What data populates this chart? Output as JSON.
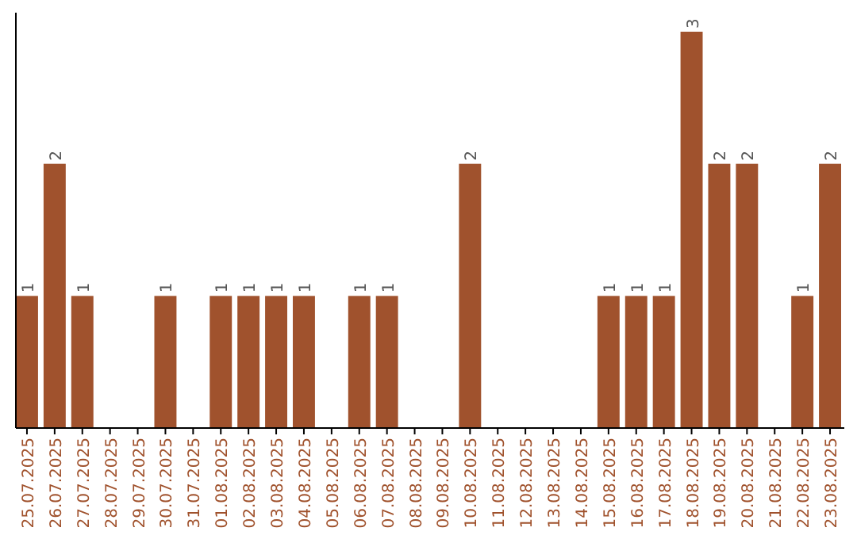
{
  "chart_data": {
    "type": "bar",
    "categories": [
      "25.07.2025",
      "26.07.2025",
      "27.07.2025",
      "28.07.2025",
      "29.07.2025",
      "30.07.2025",
      "31.07.2025",
      "01.08.2025",
      "02.08.2025",
      "03.08.2025",
      "04.08.2025",
      "05.08.2025",
      "06.08.2025",
      "07.08.2025",
      "08.08.2025",
      "09.08.2025",
      "10.08.2025",
      "11.08.2025",
      "12.08.2025",
      "13.08.2025",
      "14.08.2025",
      "15.08.2025",
      "16.08.2025",
      "17.08.2025",
      "18.08.2025",
      "19.08.2025",
      "20.08.2025",
      "21.08.2025",
      "22.08.2025",
      "23.08.2025"
    ],
    "values": [
      1,
      2,
      1,
      0,
      0,
      1,
      0,
      1,
      1,
      1,
      1,
      0,
      1,
      1,
      0,
      0,
      2,
      0,
      0,
      0,
      0,
      1,
      1,
      1,
      3,
      2,
      2,
      0,
      1,
      2
    ],
    "value_labels": [
      "1",
      "2",
      "1",
      null,
      null,
      "1",
      null,
      "1",
      "1",
      "1",
      "1",
      null,
      "1",
      "1",
      null,
      null,
      "2",
      null,
      null,
      null,
      null,
      "1",
      "1",
      "1",
      "3",
      "2",
      "2",
      null,
      "1",
      "2"
    ],
    "color": "#a0522d"
  }
}
